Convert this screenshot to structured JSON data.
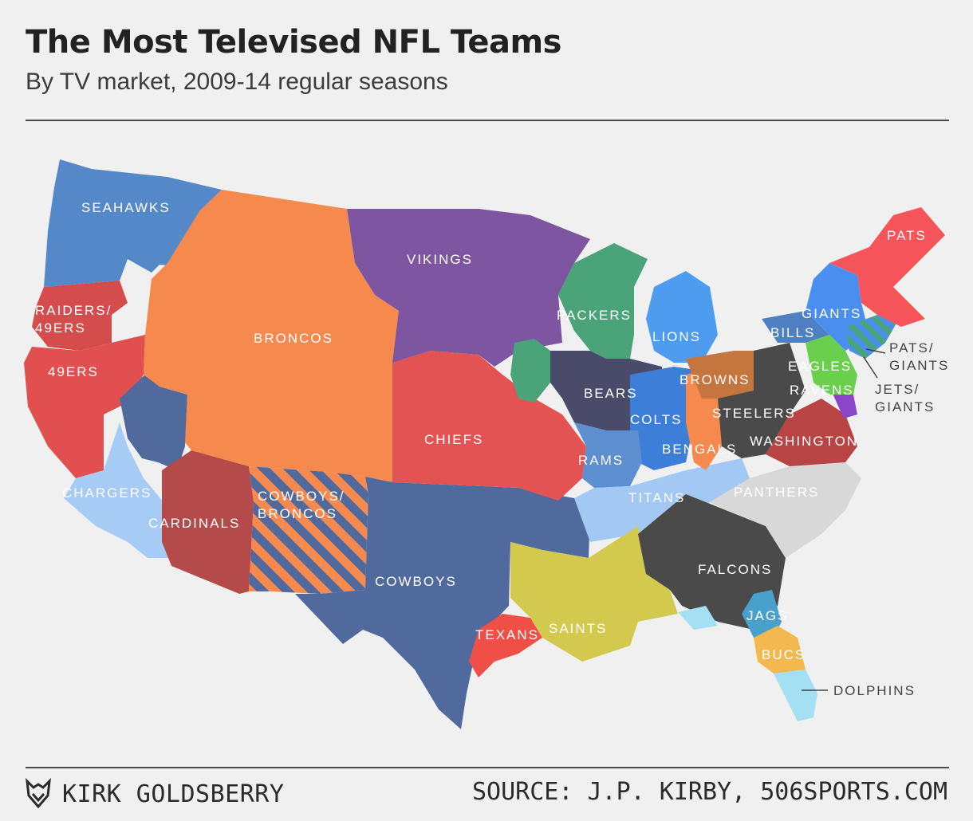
{
  "header": {
    "title": "The Most Televised NFL Teams",
    "subtitle": "By TV market, 2009-14 regular seasons"
  },
  "colors": {
    "background": "#f0f0f0",
    "seahawks": "#5588c8",
    "raiders_49ers": "#d44c4c",
    "niners": "#e24f50",
    "broncos": "#f68a4e",
    "vikings": "#7e55a0",
    "packers": "#4ba37a",
    "lions": "#4d9cf0",
    "bears": "#4a4a6a",
    "colts": "#3d7ed9",
    "chiefs": "#e35353",
    "rams": "#5d8ecf",
    "cowboys": "#516a9e",
    "cardinals": "#b44a4a",
    "chargers": "#a6ccf5",
    "texans": "#f04f48",
    "saints": "#d3c94f",
    "titans": "#a3c8f4",
    "falcons": "#4a4a4a",
    "panthers": "#d8d8d8",
    "jags": "#48a0cc",
    "bucs": "#f3b84e",
    "dolphins": "#a5dff3",
    "pats": "#f5545a",
    "giants": "#4a8ff0",
    "bills": "#4f80c4",
    "eagles": "#6bcf4e",
    "ravens": "#8a45c8",
    "washington": "#b84444",
    "steelers": "#4a4a4a",
    "browns": "#c4763e",
    "bengals": "#f68a4e"
  },
  "map": {
    "labels": {
      "seahawks": "SEAHAWKS",
      "raiders_49ers_1": "RAIDERS/",
      "raiders_49ers_2": "49ERS",
      "niners": "49ERS",
      "broncos": "BRONCOS",
      "vikings": "VIKINGS",
      "packers": "PACKERS",
      "lions": "LIONS",
      "bears": "BEARS",
      "colts": "COLTS",
      "chiefs": "CHIEFS",
      "rams": "RAMS",
      "chargers": "CHARGERS",
      "cardinals": "CARDINALS",
      "cowboys_broncos_1": "COWBOYS/",
      "cowboys_broncos_2": "BRONCOS",
      "cowboys": "COWBOYS",
      "texans": "TEXANS",
      "saints": "SAINTS",
      "titans": "TITANS",
      "falcons": "FALCONS",
      "panthers": "PANTHERS",
      "jags": "JAGS",
      "bucs": "BUCS",
      "dolphins": "DOLPHINS",
      "pats": "PATS",
      "giants": "GIANTS",
      "bills": "BILLS",
      "eagles": "EAGLES",
      "ravens": "RAVENS",
      "washington": "WASHINGTON",
      "steelers": "STEELERS",
      "browns": "BROWNS",
      "bengals": "BENGALS",
      "pats_giants_1": "PATS/",
      "pats_giants_2": "GIANTS",
      "jets_giants_1": "JETS/",
      "jets_giants_2": "GIANTS"
    }
  },
  "footer": {
    "author": "KIRK GOLDSBERRY",
    "source": "SOURCE: J.P. KIRBY, 506SPORTS.COM"
  }
}
